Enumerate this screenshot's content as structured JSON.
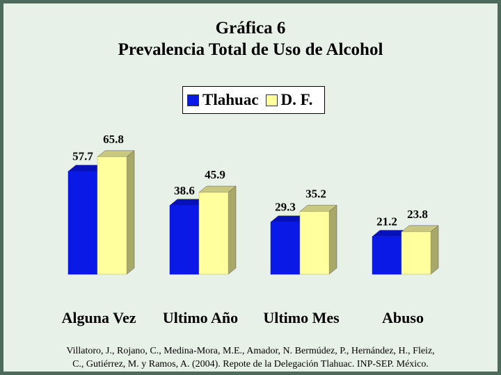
{
  "chart_data": {
    "type": "bar",
    "title": "Gráfica 6",
    "subtitle": "Prevalencia Total de Uso de Alcohol",
    "categories": [
      "Alguna Vez",
      "Ultimo Año",
      "Ultimo Mes",
      "Abuso"
    ],
    "series": [
      {
        "name": "Tlahuac",
        "values": [
          57.7,
          38.6,
          29.3,
          21.2
        ],
        "labels": [
          "57.7",
          "38.6",
          "29.3",
          "21.2"
        ],
        "color": "#0a19e6"
      },
      {
        "name": "D. F.",
        "values": [
          65.8,
          45.9,
          35.2,
          23.8
        ],
        "labels": [
          "65.8",
          "45.9",
          "35.2",
          "23.8"
        ],
        "color": "#ffff9e"
      }
    ],
    "ylim": [
      0,
      70
    ],
    "grid": false,
    "legend_position": "top-center",
    "xlabel": "",
    "ylabel": ""
  },
  "citation": {
    "line1": "Villatoro, J., Rojano, C., Medina-Mora, M.E., Amador, N. Bermúdez, P., Hernández, H., Fleiz,",
    "line2": "C., Gutiérrez, M. y Ramos, A. (2004). Repote de la Delegación Tlahuac. INP-SEP. México."
  }
}
